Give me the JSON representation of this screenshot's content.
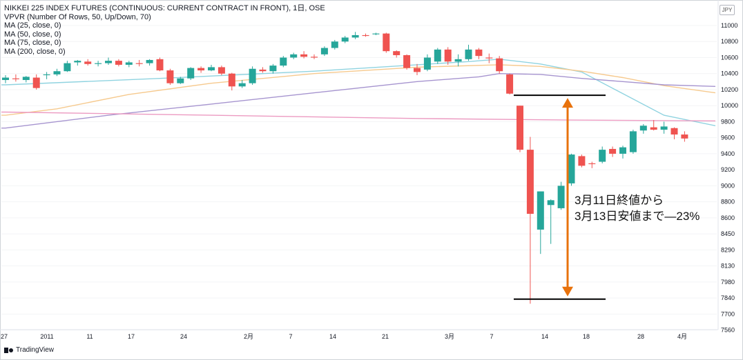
{
  "legend": {
    "title": "NIKKEI 225 INDEX FUTURES (CONTINUOUS: CURRENT CONTRACT IN FRONT), 1日, OSE",
    "lines": [
      "VPVR (Number Of Rows, 50, Up/Down, 70)",
      "MA (25, close, 0)",
      "MA (50, close, 0)",
      "MA (75, close, 0)",
      "MA (200, close, 0)"
    ]
  },
  "currency_badge": "JPY",
  "annotation": {
    "line1": "3月11日終値から",
    "line2": "3月13日安値まで—23%"
  },
  "footer": {
    "brand": "TradingView"
  },
  "colors": {
    "up": "#26a69a",
    "down": "#ef5350",
    "ma25": "#8fd3e0",
    "ma50": "#f6c98d",
    "ma75": "#a694cf",
    "ma200": "#ec9ac1",
    "arrow": "#e8720c"
  },
  "chart_data": {
    "type": "candlestick",
    "y_ticks": [
      11000,
      10800,
      10600,
      10400,
      10200,
      10000,
      9800,
      9600,
      9400,
      9200,
      9000,
      8800,
      8600,
      8450,
      8290,
      8130,
      7980,
      7840,
      7700,
      7560
    ],
    "x_ticks": [
      "27",
      "2011",
      "11",
      "17",
      "24",
      "2月",
      "7",
      "14",
      "21",
      "3月",
      "7",
      "14",
      "18",
      "28",
      "4月"
    ],
    "candles": [
      {
        "o": 10320,
        "h": 10380,
        "l": 10280,
        "c": 10350
      },
      {
        "o": 10340,
        "h": 10390,
        "l": 10300,
        "c": 10330
      },
      {
        "o": 10320,
        "h": 10370,
        "l": 10290,
        "c": 10360
      },
      {
        "o": 10350,
        "h": 10390,
        "l": 10200,
        "c": 10220
      },
      {
        "o": 10380,
        "h": 10420,
        "l": 10330,
        "c": 10390
      },
      {
        "o": 10390,
        "h": 10460,
        "l": 10370,
        "c": 10430
      },
      {
        "o": 10430,
        "h": 10560,
        "l": 10420,
        "c": 10530
      },
      {
        "o": 10540,
        "h": 10570,
        "l": 10500,
        "c": 10560
      },
      {
        "o": 10550,
        "h": 10580,
        "l": 10500,
        "c": 10520
      },
      {
        "o": 10520,
        "h": 10560,
        "l": 10490,
        "c": 10530
      },
      {
        "o": 10530,
        "h": 10600,
        "l": 10510,
        "c": 10560
      },
      {
        "o": 10560,
        "h": 10580,
        "l": 10490,
        "c": 10510
      },
      {
        "o": 10510,
        "h": 10560,
        "l": 10480,
        "c": 10540
      },
      {
        "o": 10530,
        "h": 10570,
        "l": 10490,
        "c": 10520
      },
      {
        "o": 10530,
        "h": 10580,
        "l": 10500,
        "c": 10570
      },
      {
        "o": 10580,
        "h": 10600,
        "l": 10430,
        "c": 10440
      },
      {
        "o": 10440,
        "h": 10460,
        "l": 10260,
        "c": 10280
      },
      {
        "o": 10280,
        "h": 10360,
        "l": 10270,
        "c": 10340
      },
      {
        "o": 10340,
        "h": 10480,
        "l": 10320,
        "c": 10470
      },
      {
        "o": 10470,
        "h": 10490,
        "l": 10410,
        "c": 10440
      },
      {
        "o": 10440,
        "h": 10510,
        "l": 10430,
        "c": 10480
      },
      {
        "o": 10480,
        "h": 10500,
        "l": 10380,
        "c": 10400
      },
      {
        "o": 10400,
        "h": 10410,
        "l": 10190,
        "c": 10240
      },
      {
        "o": 10240,
        "h": 10320,
        "l": 10220,
        "c": 10280
      },
      {
        "o": 10280,
        "h": 10490,
        "l": 10260,
        "c": 10460
      },
      {
        "o": 10450,
        "h": 10480,
        "l": 10410,
        "c": 10430
      },
      {
        "o": 10430,
        "h": 10520,
        "l": 10400,
        "c": 10500
      },
      {
        "o": 10500,
        "h": 10620,
        "l": 10480,
        "c": 10600
      },
      {
        "o": 10600,
        "h": 10660,
        "l": 10580,
        "c": 10640
      },
      {
        "o": 10640,
        "h": 10680,
        "l": 10590,
        "c": 10610
      },
      {
        "o": 10610,
        "h": 10640,
        "l": 10580,
        "c": 10600
      },
      {
        "o": 10640,
        "h": 10740,
        "l": 10620,
        "c": 10720
      },
      {
        "o": 10720,
        "h": 10820,
        "l": 10700,
        "c": 10800
      },
      {
        "o": 10800,
        "h": 10870,
        "l": 10780,
        "c": 10850
      },
      {
        "o": 10850,
        "h": 10920,
        "l": 10830,
        "c": 10880
      },
      {
        "o": 10880,
        "h": 10900,
        "l": 10860,
        "c": 10870
      },
      {
        "o": 10890,
        "h": 10910,
        "l": 10880,
        "c": 10900
      },
      {
        "o": 10900,
        "h": 10910,
        "l": 10660,
        "c": 10680
      },
      {
        "o": 10680,
        "h": 10690,
        "l": 10600,
        "c": 10630
      },
      {
        "o": 10630,
        "h": 10640,
        "l": 10450,
        "c": 10470
      },
      {
        "o": 10470,
        "h": 10520,
        "l": 10380,
        "c": 10420
      },
      {
        "o": 10450,
        "h": 10640,
        "l": 10430,
        "c": 10600
      },
      {
        "o": 10550,
        "h": 10720,
        "l": 10520,
        "c": 10700
      },
      {
        "o": 10700,
        "h": 10730,
        "l": 10510,
        "c": 10550
      },
      {
        "o": 10550,
        "h": 10640,
        "l": 10490,
        "c": 10580
      },
      {
        "o": 10580,
        "h": 10760,
        "l": 10560,
        "c": 10700
      },
      {
        "o": 10700,
        "h": 10720,
        "l": 10580,
        "c": 10620
      },
      {
        "o": 10600,
        "h": 10650,
        "l": 10530,
        "c": 10590
      },
      {
        "o": 10590,
        "h": 10620,
        "l": 10400,
        "c": 10430
      },
      {
        "o": 10390,
        "h": 10400,
        "l": 10140,
        "c": 10150
      },
      {
        "o": 10000,
        "h": 10000,
        "l": 9420,
        "c": 9450
      },
      {
        "o": 9450,
        "h": 9610,
        "l": 7790,
        "c": 8650
      },
      {
        "o": 8490,
        "h": 8930,
        "l": 8250,
        "c": 8930
      },
      {
        "o": 8760,
        "h": 8830,
        "l": 8350,
        "c": 8820
      },
      {
        "o": 8720,
        "h": 9050,
        "l": 8700,
        "c": 9000
      },
      {
        "o": 9030,
        "h": 9400,
        "l": 9000,
        "c": 9390
      },
      {
        "o": 9370,
        "h": 9390,
        "l": 9230,
        "c": 9250
      },
      {
        "o": 9280,
        "h": 9300,
        "l": 9220,
        "c": 9270
      },
      {
        "o": 9300,
        "h": 9490,
        "l": 9280,
        "c": 9450
      },
      {
        "o": 9460,
        "h": 9490,
        "l": 9360,
        "c": 9400
      },
      {
        "o": 9400,
        "h": 9500,
        "l": 9340,
        "c": 9480
      },
      {
        "o": 9420,
        "h": 9700,
        "l": 9400,
        "c": 9680
      },
      {
        "o": 9690,
        "h": 9770,
        "l": 9650,
        "c": 9750
      },
      {
        "o": 9730,
        "h": 9820,
        "l": 9690,
        "c": 9700
      },
      {
        "o": 9700,
        "h": 9800,
        "l": 9650,
        "c": 9740
      },
      {
        "o": 9720,
        "h": 9730,
        "l": 9580,
        "c": 9640
      },
      {
        "o": 9640,
        "h": 9680,
        "l": 9550,
        "c": 9590
      }
    ],
    "moving_averages": [
      {
        "name": "MA 25",
        "period": 25,
        "points": [
          [
            0,
            10260
          ],
          [
            15,
            10340
          ],
          [
            30,
            10430
          ],
          [
            45,
            10550
          ],
          [
            48,
            10580
          ],
          [
            52,
            10520
          ],
          [
            56,
            10420
          ],
          [
            60,
            10150
          ],
          [
            64,
            9880
          ],
          [
            68,
            9750
          ]
        ]
      },
      {
        "name": "MA 50",
        "period": 50,
        "points": [
          [
            0,
            9880
          ],
          [
            5,
            9960
          ],
          [
            12,
            10140
          ],
          [
            20,
            10280
          ],
          [
            30,
            10400
          ],
          [
            40,
            10480
          ],
          [
            48,
            10510
          ],
          [
            52,
            10490
          ],
          [
            56,
            10430
          ],
          [
            60,
            10350
          ],
          [
            64,
            10250
          ],
          [
            68,
            10160
          ]
        ]
      },
      {
        "name": "MA 75",
        "period": 75,
        "points": [
          [
            0,
            9720
          ],
          [
            10,
            9880
          ],
          [
            20,
            10020
          ],
          [
            30,
            10160
          ],
          [
            40,
            10300
          ],
          [
            46,
            10360
          ],
          [
            48,
            10400
          ],
          [
            52,
            10390
          ],
          [
            56,
            10340
          ],
          [
            60,
            10300
          ],
          [
            64,
            10260
          ],
          [
            68,
            10240
          ]
        ]
      },
      {
        "name": "MA 200",
        "period": 200,
        "points": [
          [
            0,
            9920
          ],
          [
            20,
            9880
          ],
          [
            40,
            9840
          ],
          [
            55,
            9820
          ],
          [
            68,
            9810
          ]
        ]
      }
    ],
    "levels": [
      10130,
      7830
    ]
  }
}
